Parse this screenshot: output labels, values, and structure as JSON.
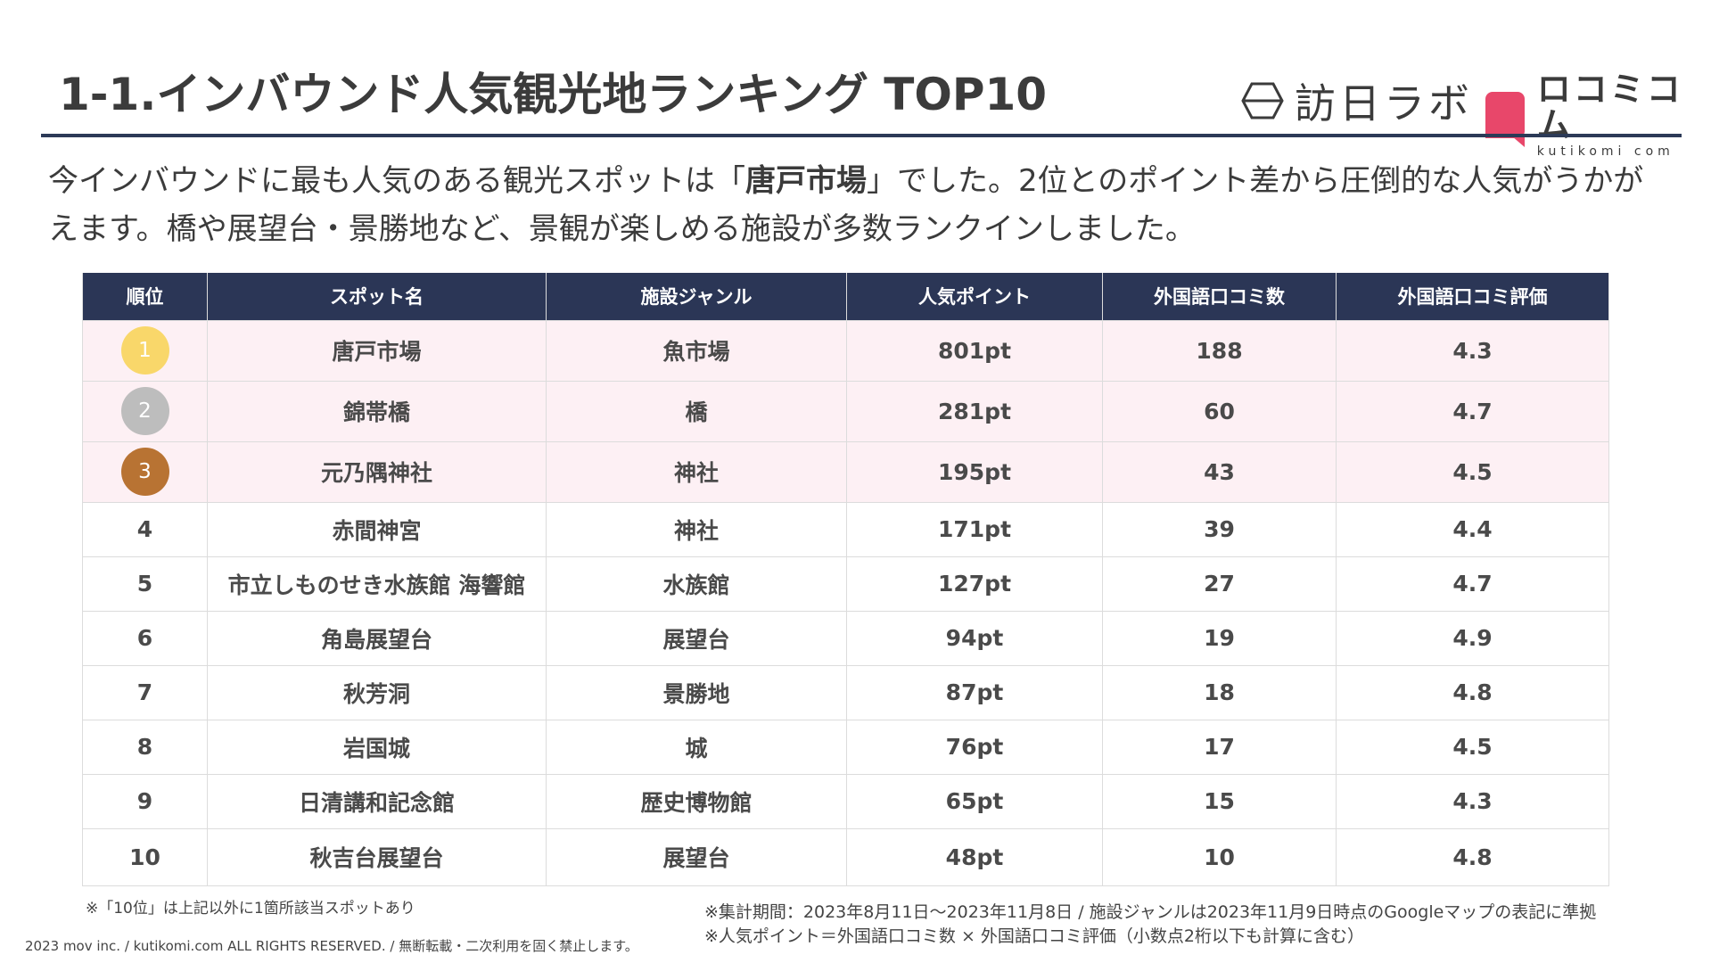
{
  "title": "1-1.インバウンド人気観光地ランキング TOP10",
  "logos": {
    "houjin_text": "訪日ラボ",
    "kuchikomi_text": "ロコミコム",
    "kuchikomi_sub": "kutikomi com"
  },
  "lead": {
    "part1": "今インバウンドに最も人気のある観光スポットは「",
    "highlight": "唐戸市場",
    "part2": "」でした。2位とのポイント差から圧倒的な人気がうかがえます。橋や展望台・景勝地など、景観が楽しめる施設が多数ランクインしました。"
  },
  "table": {
    "headers": [
      "順位",
      "スポット名",
      "施設ジャンル",
      "人気ポイント",
      "外国語口コミ数",
      "外国語口コミ評価"
    ],
    "rows": [
      {
        "rank": "1",
        "spot": "唐戸市場",
        "genre": "魚市場",
        "points": "801pt",
        "reviews": "188",
        "rating": "4.3"
      },
      {
        "rank": "2",
        "spot": "錦帯橋",
        "genre": "橋",
        "points": "281pt",
        "reviews": "60",
        "rating": "4.7"
      },
      {
        "rank": "3",
        "spot": "元乃隅神社",
        "genre": "神社",
        "points": "195pt",
        "reviews": "43",
        "rating": "4.5"
      },
      {
        "rank": "4",
        "spot": "赤間神宮",
        "genre": "神社",
        "points": "171pt",
        "reviews": "39",
        "rating": "4.4"
      },
      {
        "rank": "5",
        "spot": "市立しものせき水族館 海響館",
        "genre": "水族館",
        "points": "127pt",
        "reviews": "27",
        "rating": "4.7"
      },
      {
        "rank": "6",
        "spot": "角島展望台",
        "genre": "展望台",
        "points": "94pt",
        "reviews": "19",
        "rating": "4.9"
      },
      {
        "rank": "7",
        "spot": "秋芳洞",
        "genre": "景勝地",
        "points": "87pt",
        "reviews": "18",
        "rating": "4.8"
      },
      {
        "rank": "8",
        "spot": "岩国城",
        "genre": "城",
        "points": "76pt",
        "reviews": "17",
        "rating": "4.5"
      },
      {
        "rank": "9",
        "spot": "日清講和記念館",
        "genre": "歴史博物館",
        "points": "65pt",
        "reviews": "15",
        "rating": "4.3"
      },
      {
        "rank": "10",
        "spot": "秋吉台展望台",
        "genre": "展望台",
        "points": "48pt",
        "reviews": "10",
        "rating": "4.8"
      }
    ]
  },
  "notes": {
    "left": "※「10位」は上記以外に1箇所該当スポットあり",
    "right1": "※集計期間：2023年8月11日〜2023年11月8日 / 施設ジャンルは2023年11月9日時点のGoogleマップの表記に準拠",
    "right2": "※人気ポイント＝外国語口コミ数 × 外国語口コミ評価（小数点2桁以下も計算に含む）"
  },
  "footer": "2023 mov inc. / kutikomi.com ALL RIGHTS RESERVED. / 無断転載・二次利用を固く禁止します。",
  "colors": {
    "header_bg": "#2b3656",
    "top3_row_bg": "#fdf0f4",
    "gold": "#f9d76a",
    "silver": "#bdbdbd",
    "bronze": "#b87333",
    "kuchikomi_pink": "#e8476a"
  }
}
